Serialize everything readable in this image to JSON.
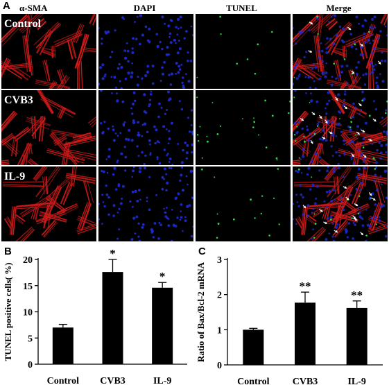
{
  "figure": {
    "panel_a_letter": "A",
    "panel_b_letter": "B",
    "panel_c_letter": "C",
    "columns": [
      "α-SMA",
      "DAPI",
      "TUNEL",
      "Merge"
    ],
    "rows": [
      "Control",
      "CVB3",
      "IL-9"
    ],
    "channel_colors": {
      "alpha_sma": "#d11a1a",
      "dapi": "#1e2bd6",
      "tunel": "#2fd24a",
      "arrow": "#ffffff"
    },
    "tunel_density": [
      {
        "row": "Control",
        "tunel_dots": 8,
        "merge_arrows": 6
      },
      {
        "row": "CVB3",
        "tunel_dots": 22,
        "merge_arrows": 16
      },
      {
        "row": "IL-9",
        "tunel_dots": 14,
        "merge_arrows": 12
      }
    ]
  },
  "chart_data": [
    {
      "type": "bar",
      "title": "",
      "xlabel": "",
      "ylabel": "TUNEL positive cells( %)",
      "categories": [
        "Control",
        "CVB3",
        "IL-9"
      ],
      "values": [
        7.0,
        17.6,
        14.6
      ],
      "errors": [
        0.6,
        2.4,
        1.0
      ],
      "significance": [
        "",
        "*",
        "*"
      ],
      "ylim": [
        0,
        20
      ],
      "yticks": [
        0,
        5,
        10,
        15,
        20
      ],
      "bar_color": "#000000",
      "grid": false
    },
    {
      "type": "bar",
      "title": "",
      "xlabel": "",
      "ylabel": "Ratio of Bax/Bcl-2 mRNA",
      "categories": [
        "Control",
        "CVB3",
        "IL-9"
      ],
      "values": [
        1.0,
        1.77,
        1.62
      ],
      "errors": [
        0.04,
        0.3,
        0.2
      ],
      "significance": [
        "",
        "**",
        "**"
      ],
      "ylim": [
        0,
        3
      ],
      "yticks": [
        0,
        1,
        2,
        3
      ],
      "bar_color": "#000000",
      "grid": false
    }
  ]
}
